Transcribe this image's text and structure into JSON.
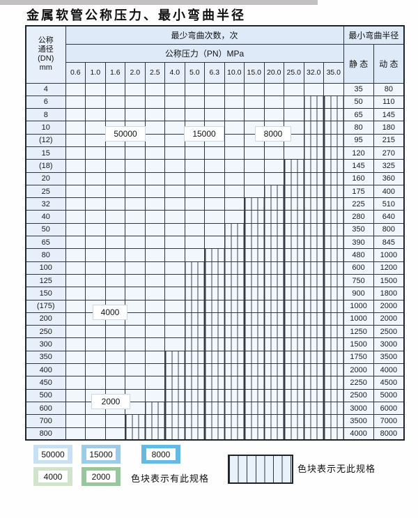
{
  "title": "金属软管公称压力、最小弯曲半径",
  "table": {
    "header": {
      "dn_label_lines": [
        "公称",
        "通径",
        "(DN)",
        "mm"
      ],
      "bend_cycles_label": "最少弯曲次数，次",
      "pressure_label": "公称压力（PN）MPa",
      "pressure_columns": [
        "0.6",
        "1.0",
        "1.6",
        "2.0",
        "2.5",
        "4.0",
        "5.0",
        "6.3",
        "10.0",
        "15.0",
        "20.0",
        "25.0",
        "32.0",
        "35.0"
      ],
      "radius_label": "最小弯曲半径",
      "static_label": "静 态",
      "dynamic_label": "动 态"
    },
    "rows": [
      {
        "dn": "4",
        "static": "35",
        "dynamic": "80",
        "segments": [
          [
            "b1",
            5
          ],
          [
            "b2",
            8
          ],
          [
            "b3",
            14
          ]
        ]
      },
      {
        "dn": "6",
        "static": "50",
        "dynamic": "110",
        "segments": [
          [
            "b1",
            5
          ],
          [
            "b2",
            8
          ],
          [
            "b3",
            12
          ]
        ]
      },
      {
        "dn": "8",
        "static": "65",
        "dynamic": "145",
        "segments": [
          [
            "b1",
            5
          ],
          [
            "b2",
            8
          ],
          [
            "b3",
            12
          ]
        ]
      },
      {
        "dn": "10",
        "static": "80",
        "dynamic": "180",
        "segments": [
          [
            "b1",
            5
          ],
          [
            "b2",
            8
          ],
          [
            "b3",
            12
          ]
        ]
      },
      {
        "dn": "(12)",
        "static": "95",
        "dynamic": "215",
        "segments": [
          [
            "b1",
            5
          ],
          [
            "b2",
            8
          ],
          [
            "b3",
            12
          ]
        ]
      },
      {
        "dn": "15",
        "static": "120",
        "dynamic": "270",
        "segments": [
          [
            "b1",
            5
          ],
          [
            "b2",
            8
          ],
          [
            "b3",
            12
          ]
        ]
      },
      {
        "dn": "(18)",
        "static": "145",
        "dynamic": "325",
        "segments": [
          [
            "b1",
            5
          ],
          [
            "b2",
            8
          ],
          [
            "b3",
            11
          ]
        ]
      },
      {
        "dn": "20",
        "static": "160",
        "dynamic": "360",
        "segments": [
          [
            "b1",
            5
          ],
          [
            "b2",
            8
          ],
          [
            "b3",
            11
          ]
        ]
      },
      {
        "dn": "25",
        "static": "175",
        "dynamic": "400",
        "segments": [
          [
            "b1",
            5
          ],
          [
            "b2",
            8
          ],
          [
            "b3",
            10
          ]
        ]
      },
      {
        "dn": "32",
        "static": "225",
        "dynamic": "510",
        "segments": [
          [
            "b1",
            5
          ],
          [
            "b2",
            6
          ],
          [
            "b3",
            9
          ]
        ]
      },
      {
        "dn": "40",
        "static": "280",
        "dynamic": "640",
        "segments": [
          [
            "b1",
            5
          ],
          [
            "b2",
            6
          ],
          [
            "b3",
            9
          ]
        ]
      },
      {
        "dn": "50",
        "static": "350",
        "dynamic": "800",
        "segments": [
          [
            "b1",
            5
          ],
          [
            "b2",
            6
          ],
          [
            "b3",
            8
          ]
        ]
      },
      {
        "dn": "65",
        "static": "390",
        "dynamic": "845",
        "segments": [
          [
            "b1",
            5
          ],
          [
            "b2",
            6
          ],
          [
            "b3",
            8
          ]
        ]
      },
      {
        "dn": "80",
        "static": "480",
        "dynamic": "1000",
        "segments": [
          [
            "b1",
            5
          ],
          [
            "b2",
            6
          ],
          [
            "b3",
            7
          ]
        ]
      },
      {
        "dn": "100",
        "static": "600",
        "dynamic": "1200",
        "segments": [
          [
            "g1",
            6
          ]
        ]
      },
      {
        "dn": "125",
        "static": "750",
        "dynamic": "1500",
        "segments": [
          [
            "g1",
            6
          ]
        ]
      },
      {
        "dn": "150",
        "static": "900",
        "dynamic": "1800",
        "segments": [
          [
            "g1",
            6
          ]
        ]
      },
      {
        "dn": "(175)",
        "static": "1000",
        "dynamic": "2000",
        "segments": [
          [
            "g1",
            6
          ]
        ]
      },
      {
        "dn": "200",
        "static": "1000",
        "dynamic": "2000",
        "segments": [
          [
            "g1",
            6
          ]
        ]
      },
      {
        "dn": "250",
        "static": "1250",
        "dynamic": "2500",
        "segments": [
          [
            "g1",
            6
          ]
        ]
      },
      {
        "dn": "300",
        "static": "1500",
        "dynamic": "3000",
        "segments": [
          [
            "g1",
            6
          ]
        ]
      },
      {
        "dn": "350",
        "static": "1750",
        "dynamic": "3500",
        "segments": [
          [
            "g2",
            5
          ]
        ]
      },
      {
        "dn": "400",
        "static": "2000",
        "dynamic": "4000",
        "segments": [
          [
            "g2",
            5
          ]
        ]
      },
      {
        "dn": "450",
        "static": "2250",
        "dynamic": "4500",
        "segments": [
          [
            "g2",
            5
          ]
        ]
      },
      {
        "dn": "500",
        "static": "2500",
        "dynamic": "5000",
        "segments": [
          [
            "g2",
            5
          ]
        ]
      },
      {
        "dn": "600",
        "static": "3000",
        "dynamic": "6000",
        "segments": [
          [
            "g2",
            4
          ]
        ]
      },
      {
        "dn": "700",
        "static": "3500",
        "dynamic": "7000",
        "segments": [
          [
            "g2",
            3
          ]
        ]
      },
      {
        "dn": "800",
        "static": "4000",
        "dynamic": "8000",
        "segments": [
          [
            "g2",
            3
          ]
        ]
      }
    ],
    "overlay_labels": [
      "50000",
      "15000",
      "8000",
      "4000",
      "2000"
    ]
  },
  "legend": {
    "has_spec_items": [
      {
        "value": "50000",
        "shade": "b1"
      },
      {
        "value": "15000",
        "shade": "b2"
      },
      {
        "value": "8000",
        "shade": "b3"
      },
      {
        "value": "4000",
        "shade": "g1"
      },
      {
        "value": "2000",
        "shade": "g2"
      }
    ],
    "has_spec_note": "色块表示有此规格",
    "no_spec_note": "色块表示无此规格"
  },
  "colors": {
    "blue_50000": "#c7e0f3",
    "blue_15000": "#9dcceb",
    "blue_8000": "#67b8e4",
    "green_4000": "#cfe4ca",
    "green_2000": "#98c79d",
    "header_bg": "#deeaf7",
    "grid_line": "#2e363c"
  }
}
